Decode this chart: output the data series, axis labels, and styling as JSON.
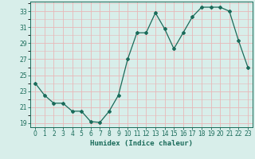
{
  "x": [
    0,
    1,
    2,
    3,
    4,
    5,
    6,
    7,
    8,
    9,
    10,
    11,
    12,
    13,
    14,
    15,
    16,
    17,
    18,
    19,
    20,
    21,
    22,
    23
  ],
  "y": [
    24.0,
    22.5,
    21.5,
    21.5,
    20.5,
    20.5,
    19.2,
    19.1,
    20.5,
    22.5,
    27.0,
    30.3,
    30.3,
    32.8,
    30.8,
    28.3,
    30.3,
    32.3,
    33.5,
    33.5,
    33.5,
    33.0,
    29.3,
    26.0
  ],
  "line_color": "#1a6b5a",
  "marker": "D",
  "marker_size": 2,
  "bg_color": "#d8eeea",
  "grid_color": "#e8b8b8",
  "axis_color": "#1a6b5a",
  "xlabel": "Humidex (Indice chaleur)",
  "ylim": [
    18.5,
    34.2
  ],
  "xlim": [
    -0.5,
    23.5
  ],
  "yticks": [
    19,
    21,
    23,
    25,
    27,
    29,
    31,
    33
  ],
  "xticks": [
    0,
    1,
    2,
    3,
    4,
    5,
    6,
    7,
    8,
    9,
    10,
    11,
    12,
    13,
    14,
    15,
    16,
    17,
    18,
    19,
    20,
    21,
    22,
    23
  ],
  "xlabel_fontsize": 6.5,
  "tick_fontsize": 5.5,
  "line_width": 0.9
}
